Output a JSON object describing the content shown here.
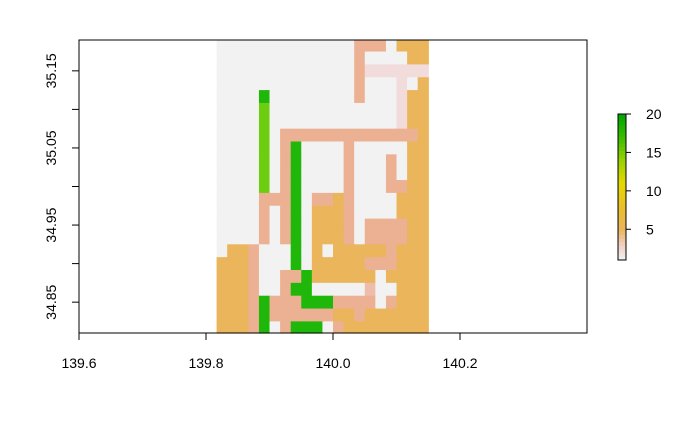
{
  "chart_data": {
    "type": "heatmap",
    "title": "",
    "xlabel": "",
    "ylabel": "",
    "xlim": [
      139.6,
      140.4
    ],
    "ylim": [
      34.81,
      35.19
    ],
    "x_ticks": [
      {
        "value": 139.6,
        "label": "139.6"
      },
      {
        "value": 139.8,
        "label": "139.8"
      },
      {
        "value": 140.0,
        "label": "140.0"
      },
      {
        "value": 140.2,
        "label": "140.2"
      }
    ],
    "y_ticks": [
      {
        "value": 34.85,
        "label": "34.85"
      },
      {
        "value": 34.9,
        "label": ""
      },
      {
        "value": 34.95,
        "label": "34.95"
      },
      {
        "value": 35.0,
        "label": ""
      },
      {
        "value": 35.05,
        "label": "35.05"
      },
      {
        "value": 35.1,
        "label": ""
      },
      {
        "value": 35.15,
        "label": "35.15"
      }
    ],
    "raster": {
      "x_start": 139.8167,
      "y_top": 35.1917,
      "cell_size": 0.016667,
      "rows": [
        "00000000000005550666",
        "00000000000005000066",
        "00000000000005222222",
        "00000000000005000206",
        "00004000000005000266",
        "00001000000000000266",
        "00001000000000000266",
        "00001055555555555556",
        "00001054000050000066",
        "00001054000050005066",
        "00001054000050005066",
        "00001054000050005566",
        "00005554055650000666",
        "00005054066650000666",
        "00005054066650555566",
        "00005054066650555566",
        "06650004060666665666",
        "66650004066666555666",
        "66650055466666606666",
        "66650054400000300666",
        "66654555444555505666",
        "66654555555665666666",
        "66654054440566666666",
        "66654444555566666666",
        "66658854466666666666",
        "66658454444566666666",
        "66660555855666666666",
        "66660540066666666666",
        "66660560555566666666",
        "66660888668666666666",
        "66666666666666666666",
        "66666666666666666666"
      ]
    },
    "raster_legend": {
      "0": "no data (light grey)",
      "1": "value ~10 (yellow-green)",
      "2": "value ~1 (pale pink)",
      "3": "value ~3 (light salmon)",
      "4": "value ~12 (green)",
      "5": "value ~4 (salmon)",
      "6": "value ~5 (tan)",
      "8": "value ~20 (dark green)"
    },
    "colors": {
      "0": "#f2f2f2",
      "1": "#6dcd10",
      "2": "#f2dcdb",
      "3": "#eebcaa",
      "4": "#1fb70a",
      "5": "#ecb192",
      "6": "#ebb55b",
      "8": "#00a600"
    },
    "colorbar": {
      "min": 1,
      "max": 20,
      "ticks": [
        {
          "value": 5,
          "label": "5"
        },
        {
          "value": 10,
          "label": "10"
        },
        {
          "value": 15,
          "label": "15"
        },
        {
          "value": 20,
          "label": "20"
        }
      ],
      "stops": [
        {
          "value": 1,
          "color": "#f2f2f2"
        },
        {
          "value": 3,
          "color": "#f0cfc4"
        },
        {
          "value": 5,
          "color": "#ebb55b"
        },
        {
          "value": 8,
          "color": "#e8c02a"
        },
        {
          "value": 11,
          "color": "#e6d800"
        },
        {
          "value": 14,
          "color": "#9ad100"
        },
        {
          "value": 17,
          "color": "#38bd00"
        },
        {
          "value": 20,
          "color": "#00a600"
        }
      ]
    }
  }
}
